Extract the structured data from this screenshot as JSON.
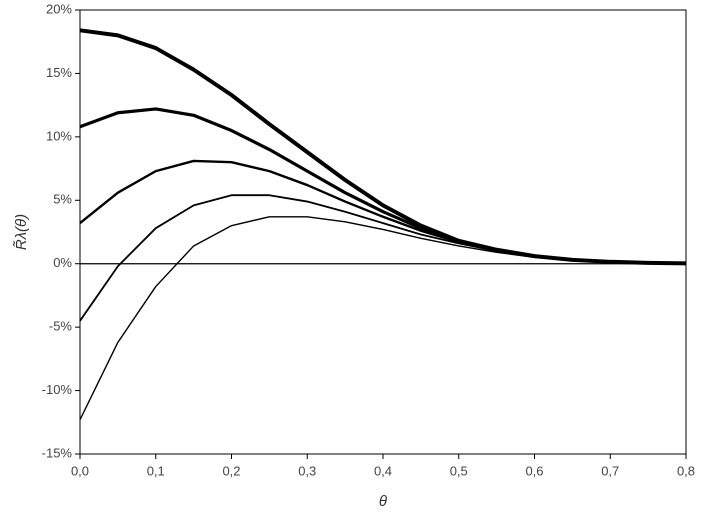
{
  "chart_data": {
    "type": "line",
    "xlabel": "θ",
    "ylabel": "R̃λ(θ)",
    "x": [
      0,
      0.05,
      0.1,
      0.15,
      0.2,
      0.25,
      0.3,
      0.35,
      0.4,
      0.45,
      0.5,
      0.55,
      0.6,
      0.65,
      0.7,
      0.75,
      0.8
    ],
    "series": [
      {
        "color": "#000000",
        "values": [
          18.4,
          18.0,
          17.0,
          15.3,
          13.3,
          11.0,
          8.8,
          6.6,
          4.6,
          3.0,
          1.8,
          1.1,
          0.6,
          0.3,
          0.15,
          0.07,
          0.03
        ]
      },
      {
        "color": "#000000",
        "values": [
          10.8,
          11.9,
          12.2,
          11.7,
          10.5,
          9.0,
          7.3,
          5.6,
          4.1,
          2.8,
          1.8,
          1.1,
          0.6,
          0.3,
          0.15,
          0.07,
          0.03
        ]
      },
      {
        "color": "#000000",
        "values": [
          3.2,
          5.6,
          7.3,
          8.1,
          8.0,
          7.3,
          6.2,
          4.9,
          3.7,
          2.6,
          1.7,
          1.0,
          0.6,
          0.3,
          0.15,
          0.07,
          0.03
        ]
      },
      {
        "color": "#000000",
        "values": [
          -4.5,
          -0.2,
          2.8,
          4.6,
          5.4,
          5.4,
          4.9,
          4.1,
          3.2,
          2.3,
          1.6,
          1.0,
          0.6,
          0.3,
          0.15,
          0.07,
          0.03
        ]
      },
      {
        "color": "#000000",
        "values": [
          -12.3,
          -6.2,
          -1.8,
          1.4,
          3.0,
          3.7,
          3.7,
          3.3,
          2.7,
          2.0,
          1.4,
          0.9,
          0.5,
          0.3,
          0.15,
          0.07,
          0.03
        ]
      }
    ],
    "xlim": [
      0,
      0.8
    ],
    "xticks": [
      {
        "value": 0,
        "label": "0,0"
      },
      {
        "value": 0.1,
        "label": "0,1"
      },
      {
        "value": 0.2,
        "label": "0,2"
      },
      {
        "value": 0.3,
        "label": "0,3"
      },
      {
        "value": 0.4,
        "label": "0,4"
      },
      {
        "value": 0.5,
        "label": "0,5"
      },
      {
        "value": 0.6,
        "label": "0,6"
      },
      {
        "value": 0.7,
        "label": "0,7"
      },
      {
        "value": 0.8,
        "label": "0,8"
      }
    ],
    "ylim": [
      -15,
      20
    ],
    "yticks": [
      {
        "value": -15,
        "label": "-15%"
      },
      {
        "value": -10,
        "label": "-10%"
      },
      {
        "value": -5,
        "label": "-5%"
      },
      {
        "value": 0,
        "label": "0%"
      },
      {
        "value": 5,
        "label": "5%"
      },
      {
        "value": 10,
        "label": "10%"
      },
      {
        "value": 15,
        "label": "15%"
      },
      {
        "value": 20,
        "label": "20%"
      }
    ]
  }
}
